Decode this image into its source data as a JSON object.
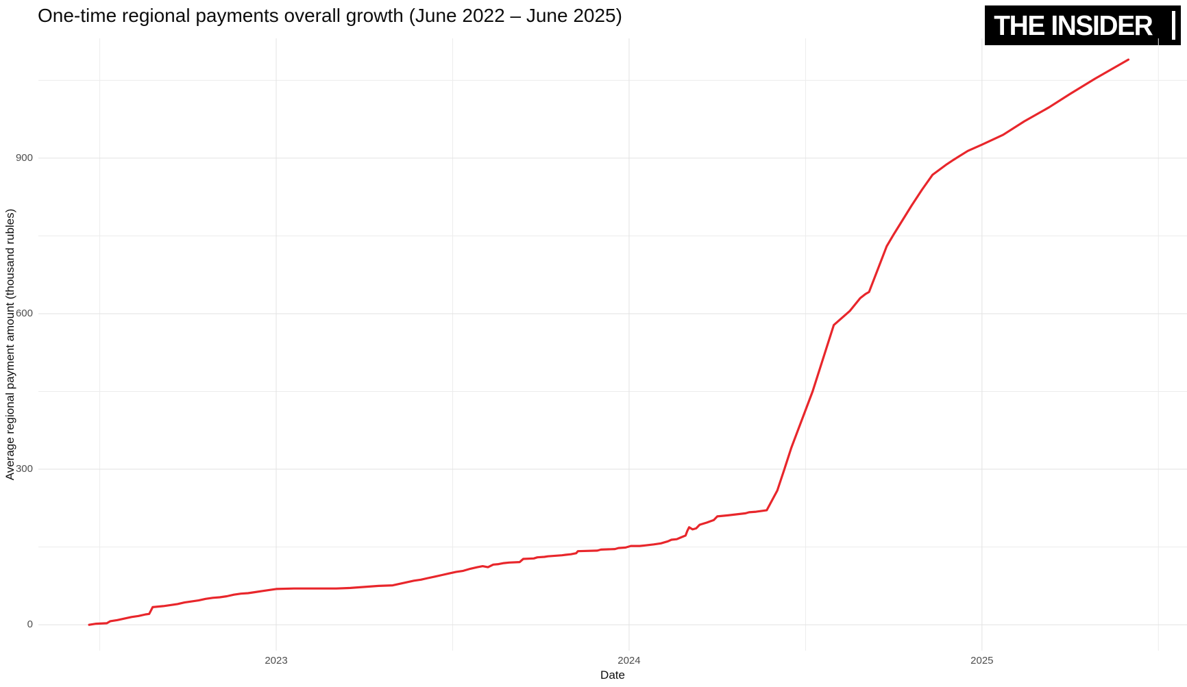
{
  "header": {
    "logo": {
      "text": "THE INSIDER",
      "bg": "#000000",
      "fg": "#ffffff"
    }
  },
  "chart_data": {
    "type": "line",
    "title": "One-time regional payments overall growth (June 2022 – June 2025)",
    "xlabel": "Date",
    "ylabel": "Average regional payment amount (thousand rubles)",
    "xlim": [
      2022.326,
      2025.581
    ],
    "ylim": [
      -50,
      1131
    ],
    "grid": {
      "major_color": "#e2e2e2",
      "minor_color": "#ececec",
      "background": "#ffffff"
    },
    "axis_tick_color": "#4d4d4d",
    "x_major_ticks": [
      {
        "value": 2023,
        "label": "2023"
      },
      {
        "value": 2024,
        "label": "2024"
      },
      {
        "value": 2025,
        "label": "2025"
      }
    ],
    "x_minor_ticks": [
      2022.5,
      2023.5,
      2024.5,
      2025.5
    ],
    "y_major_ticks": [
      {
        "value": 0,
        "label": "0"
      },
      {
        "value": 300,
        "label": "300"
      },
      {
        "value": 600,
        "label": "600"
      },
      {
        "value": 900,
        "label": "900"
      }
    ],
    "y_minor_ticks": [
      150,
      450,
      750,
      1050
    ],
    "series": [
      {
        "name": "Average one-time regional payment amount",
        "color": "#e8262b",
        "stroke_width": 3.2,
        "points": [
          [
            2022.47,
            0
          ],
          [
            2022.49,
            2
          ],
          [
            2022.52,
            3
          ],
          [
            2022.53,
            7
          ],
          [
            2022.55,
            9
          ],
          [
            2022.57,
            12
          ],
          [
            2022.59,
            15
          ],
          [
            2022.61,
            17
          ],
          [
            2022.63,
            20
          ],
          [
            2022.64,
            21
          ],
          [
            2022.65,
            34
          ],
          [
            2022.68,
            36
          ],
          [
            2022.7,
            38
          ],
          [
            2022.72,
            40
          ],
          [
            2022.74,
            43
          ],
          [
            2022.76,
            45
          ],
          [
            2022.78,
            47
          ],
          [
            2022.8,
            50
          ],
          [
            2022.82,
            52
          ],
          [
            2022.84,
            53
          ],
          [
            2022.86,
            55
          ],
          [
            2022.88,
            58
          ],
          [
            2022.9,
            60
          ],
          [
            2022.92,
            61
          ],
          [
            2022.94,
            63
          ],
          [
            2022.96,
            65
          ],
          [
            2022.98,
            67
          ],
          [
            2023.0,
            69
          ],
          [
            2023.05,
            70
          ],
          [
            2023.17,
            70
          ],
          [
            2023.21,
            71
          ],
          [
            2023.25,
            73
          ],
          [
            2023.29,
            75
          ],
          [
            2023.33,
            76
          ],
          [
            2023.35,
            79
          ],
          [
            2023.37,
            82
          ],
          [
            2023.39,
            85
          ],
          [
            2023.41,
            87
          ],
          [
            2023.43,
            90
          ],
          [
            2023.45,
            93
          ],
          [
            2023.47,
            96
          ],
          [
            2023.49,
            99
          ],
          [
            2023.51,
            102
          ],
          [
            2023.53,
            104
          ],
          [
            2023.55,
            108
          ],
          [
            2023.57,
            111
          ],
          [
            2023.585,
            113
          ],
          [
            2023.6,
            111
          ],
          [
            2023.615,
            116
          ],
          [
            2023.63,
            117
          ],
          [
            2023.645,
            119
          ],
          [
            2023.66,
            120
          ],
          [
            2023.69,
            121
          ],
          [
            2023.7,
            127
          ],
          [
            2023.73,
            128
          ],
          [
            2023.74,
            130
          ],
          [
            2023.76,
            131
          ],
          [
            2023.77,
            132
          ],
          [
            2023.81,
            134
          ],
          [
            2023.82,
            135
          ],
          [
            2023.835,
            136
          ],
          [
            2023.85,
            138
          ],
          [
            2023.855,
            142
          ],
          [
            2023.91,
            143
          ],
          [
            2023.92,
            145
          ],
          [
            2023.96,
            146
          ],
          [
            2023.97,
            148
          ],
          [
            2023.99,
            149
          ],
          [
            2024.005,
            152
          ],
          [
            2024.03,
            152
          ],
          [
            2024.045,
            153
          ],
          [
            2024.07,
            155
          ],
          [
            2024.09,
            157
          ],
          [
            2024.1,
            159
          ],
          [
            2024.11,
            161
          ],
          [
            2024.12,
            164
          ],
          [
            2024.135,
            165
          ],
          [
            2024.145,
            168
          ],
          [
            2024.16,
            172
          ],
          [
            2024.165,
            181
          ],
          [
            2024.17,
            188
          ],
          [
            2024.18,
            184
          ],
          [
            2024.19,
            186
          ],
          [
            2024.2,
            193
          ],
          [
            2024.22,
            197
          ],
          [
            2024.24,
            202
          ],
          [
            2024.25,
            209
          ],
          [
            2024.28,
            211
          ],
          [
            2024.33,
            215
          ],
          [
            2024.34,
            217
          ],
          [
            2024.36,
            218
          ],
          [
            2024.39,
            221
          ],
          [
            2024.42,
            259
          ],
          [
            2024.44,
            300
          ],
          [
            2024.46,
            342
          ],
          [
            2024.52,
            450
          ],
          [
            2024.58,
            578
          ],
          [
            2024.625,
            605
          ],
          [
            2024.655,
            630
          ],
          [
            2024.67,
            638
          ],
          [
            2024.68,
            642
          ],
          [
            2024.73,
            730
          ],
          [
            2024.75,
            753
          ],
          [
            2024.8,
            808
          ],
          [
            2024.83,
            839
          ],
          [
            2024.86,
            868
          ],
          [
            2024.9,
            888
          ],
          [
            2024.92,
            897
          ],
          [
            2024.96,
            914
          ],
          [
            2025.0,
            926
          ],
          [
            2025.06,
            945
          ],
          [
            2025.12,
            971
          ],
          [
            2025.19,
            998
          ],
          [
            2025.25,
            1024
          ],
          [
            2025.32,
            1053
          ],
          [
            2025.415,
            1090
          ]
        ]
      }
    ]
  }
}
